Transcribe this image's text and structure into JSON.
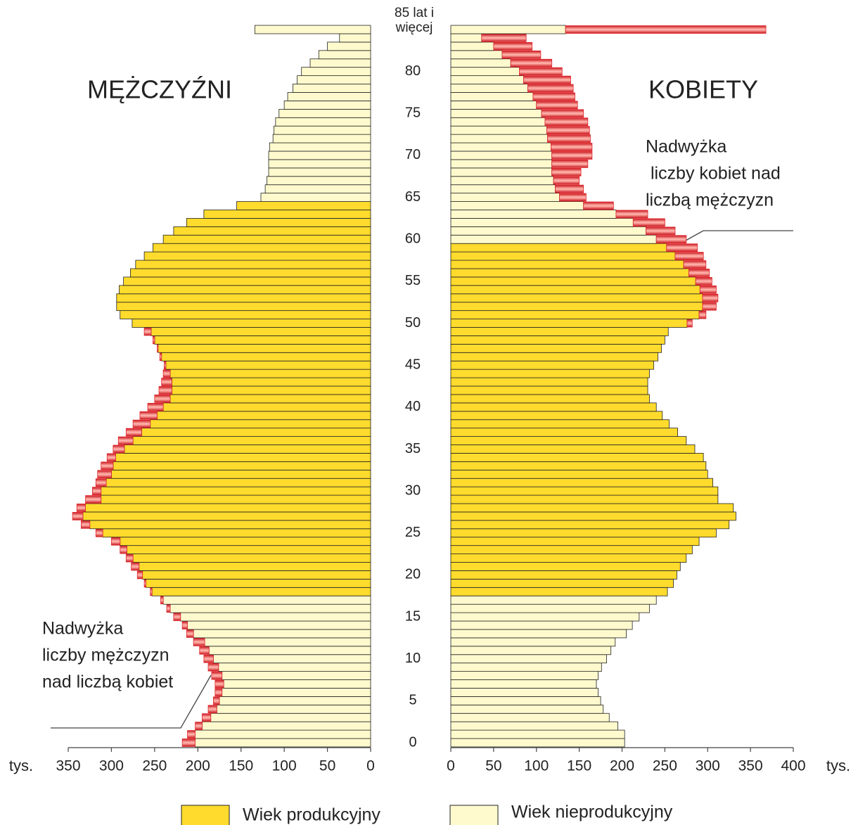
{
  "chart_data": {
    "type": "pyramid",
    "categories": [
      "0",
      null,
      null,
      null,
      null,
      "5",
      null,
      null,
      null,
      null,
      "10",
      null,
      null,
      null,
      null,
      "15",
      null,
      null,
      null,
      null,
      "20",
      null,
      null,
      null,
      null,
      "25",
      null,
      null,
      null,
      null,
      "30",
      null,
      null,
      null,
      null,
      "35",
      null,
      null,
      null,
      null,
      "40",
      null,
      null,
      null,
      null,
      "45",
      null,
      null,
      null,
      null,
      "50",
      null,
      null,
      null,
      null,
      "55",
      null,
      null,
      null,
      null,
      "60",
      null,
      null,
      null,
      null,
      "65",
      null,
      null,
      null,
      null,
      "70",
      null,
      null,
      null,
      null,
      "75",
      null,
      null,
      null,
      null,
      "80",
      null,
      null,
      null,
      null,
      "85 lat i więcej"
    ],
    "series": [
      {
        "name": "MĘŻCZYŹNI",
        "productive_ages": [
          18,
          64
        ],
        "xlim": [
          0,
          350
        ],
        "xticks": [
          0,
          50,
          100,
          150,
          200,
          250,
          300,
          350
        ],
        "values": [
          218,
          212,
          203,
          195,
          188,
          182,
          180,
          180,
          184,
          188,
          193,
          198,
          205,
          213,
          218,
          228,
          236,
          243,
          255,
          262,
          270,
          277,
          283,
          290,
          300,
          318,
          335,
          345,
          340,
          330,
          322,
          318,
          316,
          312,
          305,
          298,
          292,
          283,
          275,
          267,
          258,
          250,
          245,
          242,
          240,
          239,
          244,
          247,
          252,
          262,
          276,
          290,
          294,
          294,
          291,
          286,
          278,
          272,
          262,
          252,
          240,
          228,
          213,
          193,
          155,
          127,
          122,
          120,
          118,
          118,
          118,
          117,
          113,
          112,
          110,
          106,
          100,
          96,
          90,
          85,
          80,
          70,
          60,
          50,
          36,
          134
        ]
      },
      {
        "name": "KOBIETY",
        "productive_ages": [
          18,
          59
        ],
        "xlim": [
          0,
          400
        ],
        "xticks": [
          0,
          50,
          100,
          150,
          200,
          250,
          300,
          350,
          400
        ],
        "values": [
          203,
          203,
          195,
          185,
          178,
          175,
          172,
          170,
          172,
          176,
          182,
          187,
          192,
          205,
          212,
          220,
          232,
          240,
          253,
          260,
          264,
          268,
          275,
          282,
          290,
          310,
          325,
          333,
          330,
          312,
          312,
          306,
          300,
          298,
          295,
          285,
          275,
          265,
          255,
          247,
          240,
          232,
          230,
          230,
          232,
          237,
          242,
          246,
          250,
          254,
          282,
          298,
          310,
          312,
          310,
          305,
          302,
          298,
          295,
          288,
          275,
          262,
          250,
          230,
          190,
          158,
          155,
          150,
          152,
          160,
          165,
          165,
          163,
          162,
          160,
          155,
          148,
          145,
          143,
          140,
          130,
          118,
          105,
          95,
          88,
          368
        ]
      }
    ],
    "x_unit": "tys.",
    "surplus_color": "#e0242a",
    "legend": [
      {
        "label": "Wiek produkcyjny",
        "color": "#fedb2c"
      },
      {
        "label": "Wiek nieprodukcyjny",
        "color": "#fffacd"
      }
    ],
    "annotations": [
      {
        "lines": [
          "Nadwyżka",
          "liczby mężczyzn",
          "nad liczbą kobiet"
        ]
      },
      {
        "lines": [
          "Nadwyżka",
          " liczby kobiet nad",
          "liczbą mężczyzn"
        ]
      }
    ]
  }
}
